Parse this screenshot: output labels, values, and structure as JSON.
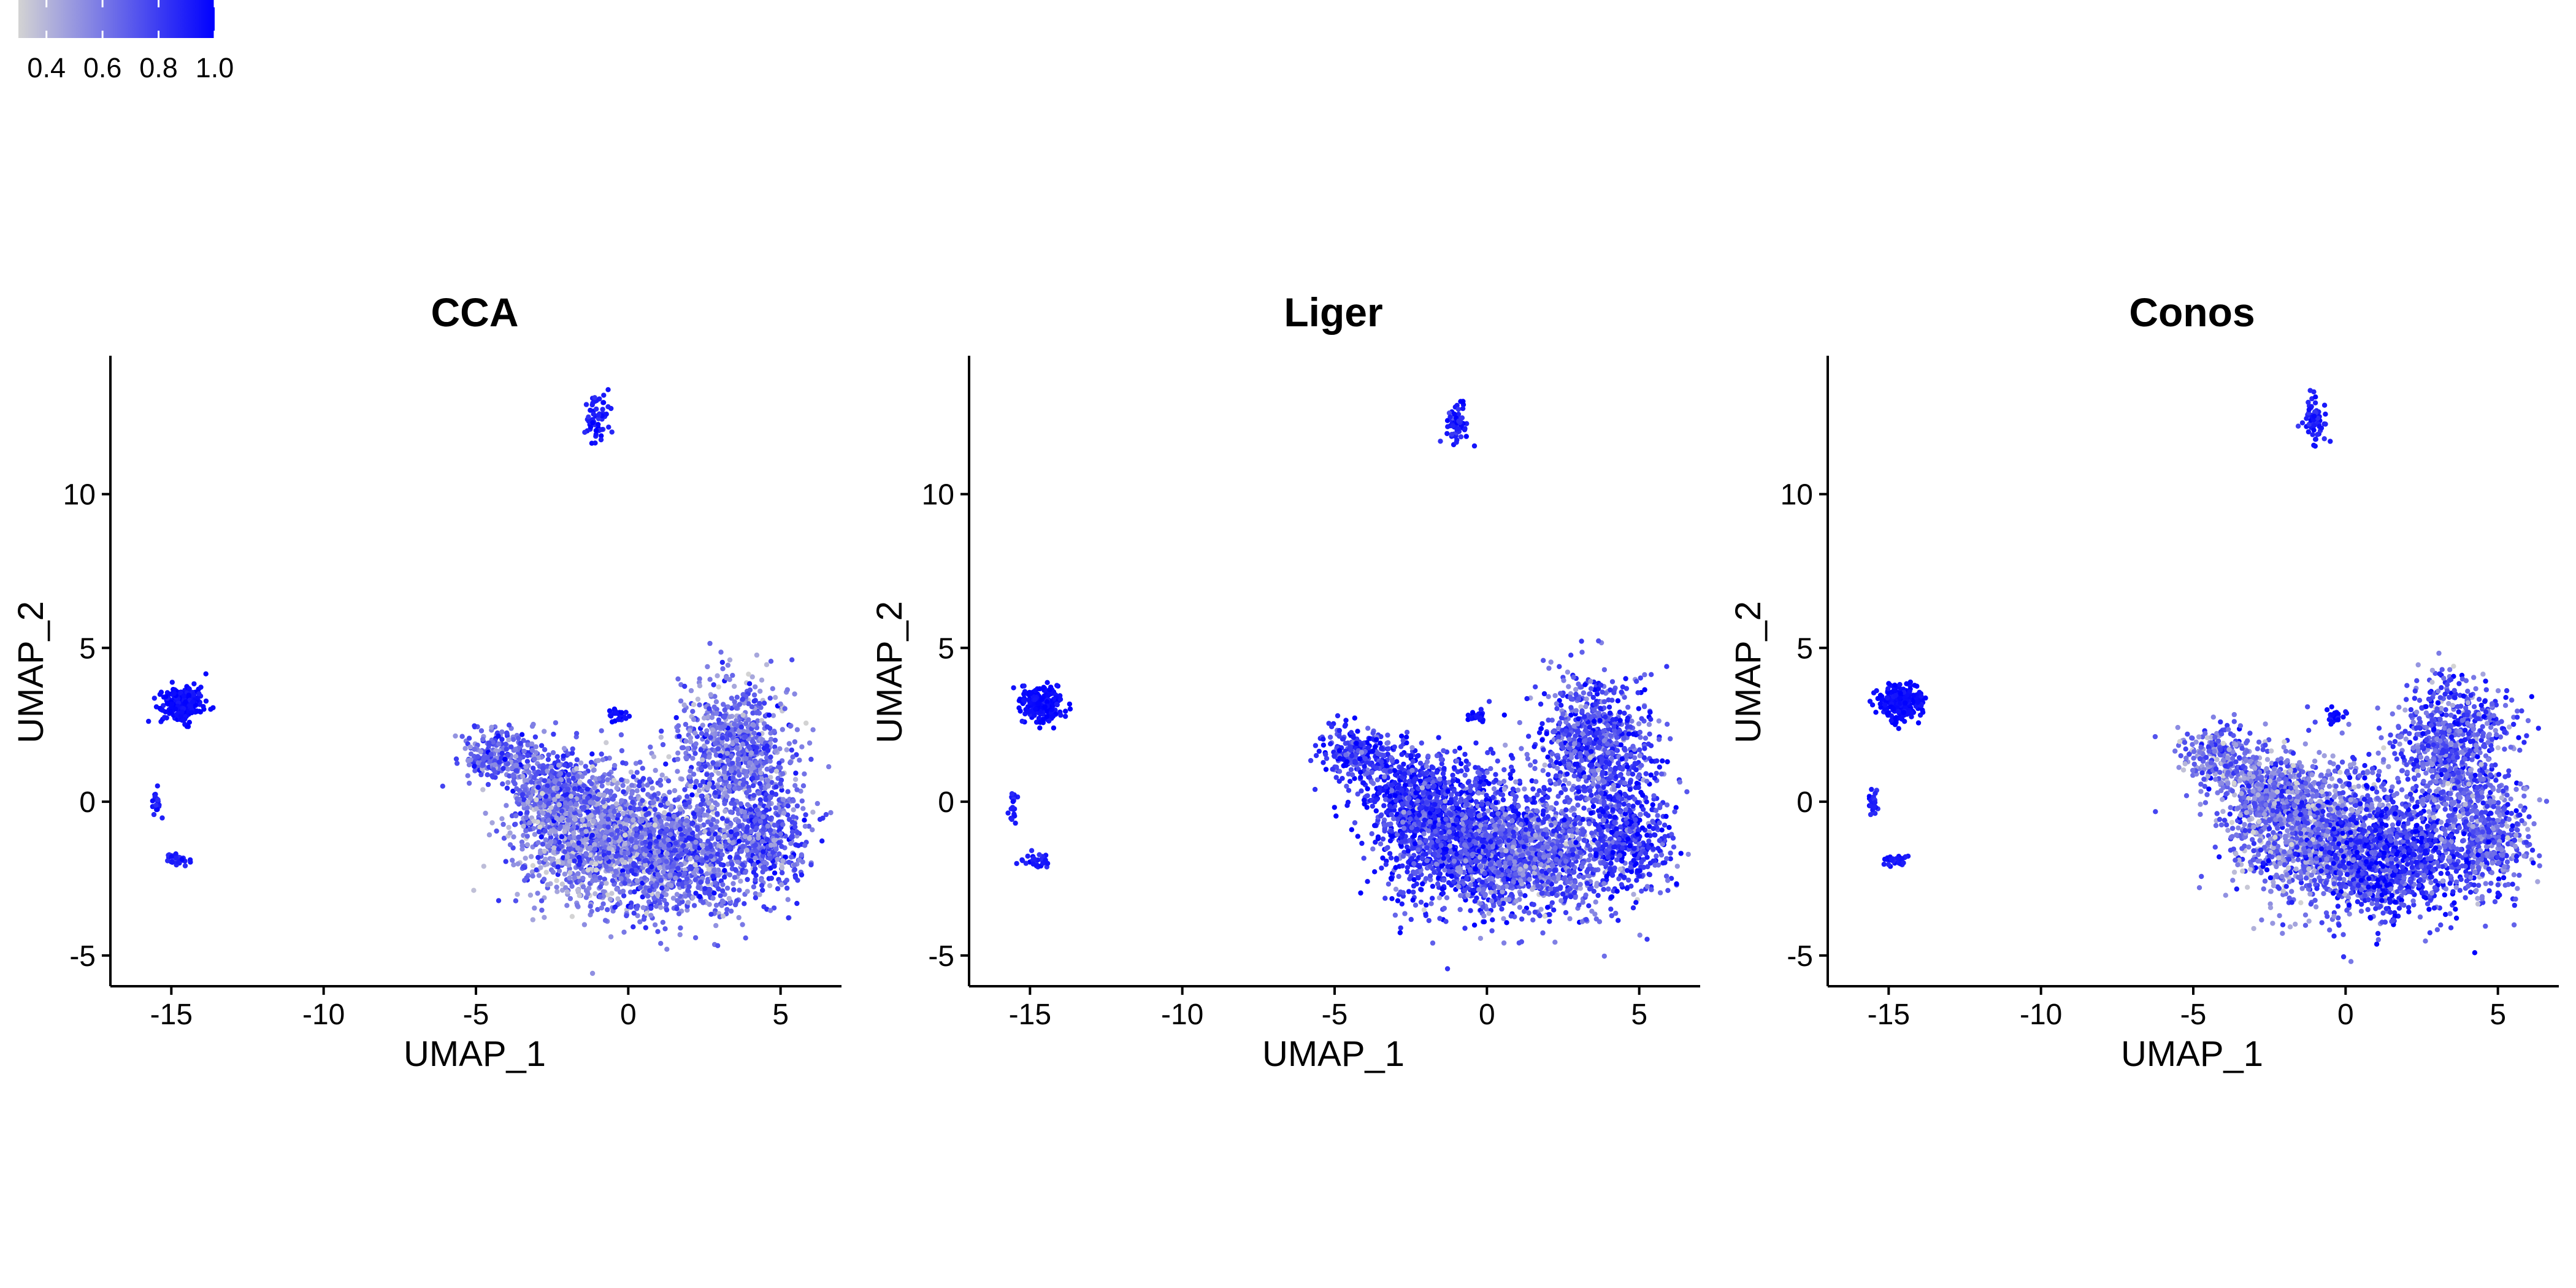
{
  "legend": {
    "colors": {
      "low": "#d3d3d3",
      "high": "#0000ff"
    },
    "range": [
      0.3,
      1.0
    ],
    "ticks": [
      "0.4",
      "0.6",
      "0.8",
      "1.0"
    ],
    "tick_values": [
      0.4,
      0.6,
      0.8,
      1.0
    ]
  },
  "chart_data": [
    {
      "type": "scatter",
      "title": "CCA",
      "xlabel": "UMAP_1",
      "ylabel": "UMAP_2",
      "xlim": [
        -17,
        7
      ],
      "ylim": [
        -6,
        14.5
      ],
      "xticks": [
        "-15",
        "-10",
        "-5",
        "0",
        "5"
      ],
      "xtick_values": [
        -15,
        -10,
        -5,
        0,
        5
      ],
      "yticks": [
        "-5",
        "0",
        "5",
        "10"
      ],
      "ytick_values": [
        -5,
        0,
        5,
        10
      ],
      "grid": false,
      "clusters": [
        {
          "cx": -14.6,
          "cy": 3.2,
          "sx": 0.35,
          "sy": 0.28,
          "n": 240,
          "mean": 0.97,
          "sd": 0.03
        },
        {
          "cx": -15.5,
          "cy": 0.0,
          "sx": 0.08,
          "sy": 0.25,
          "n": 22,
          "mean": 0.9,
          "sd": 0.05
        },
        {
          "cx": -14.8,
          "cy": -1.9,
          "sx": 0.22,
          "sy": 0.12,
          "n": 30,
          "mean": 0.92,
          "sd": 0.05
        },
        {
          "cx": -1.0,
          "cy": 12.4,
          "sx": 0.18,
          "sy": 0.45,
          "n": 60,
          "mean": 0.9,
          "sd": 0.06
        },
        {
          "cx": -0.35,
          "cy": 2.8,
          "sx": 0.16,
          "sy": 0.12,
          "n": 25,
          "mean": 0.95,
          "sd": 0.04
        },
        {
          "cx": -4.2,
          "cy": 1.5,
          "sx": 0.6,
          "sy": 0.45,
          "n": 260,
          "mean": 0.7,
          "sd": 0.13
        },
        {
          "cx": -2.4,
          "cy": 0.2,
          "sx": 0.8,
          "sy": 0.7,
          "n": 500,
          "mean": 0.66,
          "sd": 0.14
        },
        {
          "cx": -0.7,
          "cy": -1.2,
          "sx": 1.4,
          "sy": 1.1,
          "n": 1400,
          "mean": 0.58,
          "sd": 0.16
        },
        {
          "cx": 1.8,
          "cy": -1.8,
          "sx": 1.3,
          "sy": 1.0,
          "n": 900,
          "mean": 0.68,
          "sd": 0.15
        },
        {
          "cx": 3.5,
          "cy": 1.8,
          "sx": 0.95,
          "sy": 1.1,
          "n": 800,
          "mean": 0.64,
          "sd": 0.14
        },
        {
          "cx": 4.6,
          "cy": -1.2,
          "sx": 0.7,
          "sy": 0.9,
          "n": 450,
          "mean": 0.7,
          "sd": 0.14
        }
      ]
    },
    {
      "type": "scatter",
      "title": "Liger",
      "xlabel": "UMAP_1",
      "ylabel": "UMAP_2",
      "xlim": [
        -17,
        7
      ],
      "ylim": [
        -6,
        14.5
      ],
      "xticks": [
        "-15",
        "-10",
        "-5",
        "0",
        "5"
      ],
      "xtick_values": [
        -15,
        -10,
        -5,
        0,
        5
      ],
      "yticks": [
        "-5",
        "0",
        "5",
        "10"
      ],
      "ytick_values": [
        -5,
        0,
        5,
        10
      ],
      "grid": false,
      "clusters": [
        {
          "cx": -14.6,
          "cy": 3.2,
          "sx": 0.35,
          "sy": 0.28,
          "n": 240,
          "mean": 0.97,
          "sd": 0.03
        },
        {
          "cx": -15.5,
          "cy": 0.0,
          "sx": 0.08,
          "sy": 0.25,
          "n": 22,
          "mean": 0.9,
          "sd": 0.05
        },
        {
          "cx": -14.8,
          "cy": -1.9,
          "sx": 0.22,
          "sy": 0.12,
          "n": 30,
          "mean": 0.92,
          "sd": 0.05
        },
        {
          "cx": -1.0,
          "cy": 12.4,
          "sx": 0.18,
          "sy": 0.45,
          "n": 60,
          "mean": 0.9,
          "sd": 0.06
        },
        {
          "cx": -0.35,
          "cy": 2.8,
          "sx": 0.16,
          "sy": 0.12,
          "n": 25,
          "mean": 0.95,
          "sd": 0.04
        },
        {
          "cx": -4.2,
          "cy": 1.5,
          "sx": 0.6,
          "sy": 0.45,
          "n": 260,
          "mean": 0.82,
          "sd": 0.12
        },
        {
          "cx": -2.4,
          "cy": 0.2,
          "sx": 0.8,
          "sy": 0.7,
          "n": 500,
          "mean": 0.85,
          "sd": 0.12
        },
        {
          "cx": -0.7,
          "cy": -1.2,
          "sx": 1.4,
          "sy": 1.1,
          "n": 1400,
          "mean": 0.82,
          "sd": 0.14
        },
        {
          "cx": 1.8,
          "cy": -1.8,
          "sx": 1.3,
          "sy": 1.0,
          "n": 900,
          "mean": 0.68,
          "sd": 0.15
        },
        {
          "cx": 3.5,
          "cy": 1.8,
          "sx": 0.95,
          "sy": 1.1,
          "n": 800,
          "mean": 0.76,
          "sd": 0.15
        },
        {
          "cx": 4.6,
          "cy": -1.2,
          "sx": 0.7,
          "sy": 0.9,
          "n": 450,
          "mean": 0.82,
          "sd": 0.13
        }
      ]
    },
    {
      "type": "scatter",
      "title": "Conos",
      "xlabel": "UMAP_1",
      "ylabel": "UMAP_2",
      "xlim": [
        -17,
        7
      ],
      "ylim": [
        -6,
        14.5
      ],
      "xticks": [
        "-15",
        "-10",
        "-5",
        "0",
        "5"
      ],
      "xtick_values": [
        -15,
        -10,
        -5,
        0,
        5
      ],
      "yticks": [
        "-5",
        "0",
        "5",
        "10"
      ],
      "ytick_values": [
        -5,
        0,
        5,
        10
      ],
      "grid": false,
      "clusters": [
        {
          "cx": -14.6,
          "cy": 3.2,
          "sx": 0.35,
          "sy": 0.28,
          "n": 240,
          "mean": 0.97,
          "sd": 0.03
        },
        {
          "cx": -15.5,
          "cy": 0.0,
          "sx": 0.08,
          "sy": 0.25,
          "n": 22,
          "mean": 0.9,
          "sd": 0.05
        },
        {
          "cx": -14.8,
          "cy": -1.9,
          "sx": 0.22,
          "sy": 0.12,
          "n": 30,
          "mean": 0.92,
          "sd": 0.05
        },
        {
          "cx": -1.0,
          "cy": 12.4,
          "sx": 0.18,
          "sy": 0.45,
          "n": 60,
          "mean": 0.9,
          "sd": 0.06
        },
        {
          "cx": -0.35,
          "cy": 2.8,
          "sx": 0.16,
          "sy": 0.12,
          "n": 25,
          "mean": 0.95,
          "sd": 0.04
        },
        {
          "cx": -4.2,
          "cy": 1.5,
          "sx": 0.6,
          "sy": 0.45,
          "n": 260,
          "mean": 0.62,
          "sd": 0.15
        },
        {
          "cx": -2.4,
          "cy": 0.2,
          "sx": 0.8,
          "sy": 0.7,
          "n": 500,
          "mean": 0.66,
          "sd": 0.15
        },
        {
          "cx": -0.7,
          "cy": -1.2,
          "sx": 1.4,
          "sy": 1.1,
          "n": 1400,
          "mean": 0.62,
          "sd": 0.16
        },
        {
          "cx": 1.8,
          "cy": -1.8,
          "sx": 1.3,
          "sy": 1.0,
          "n": 900,
          "mean": 0.84,
          "sd": 0.13
        },
        {
          "cx": 3.5,
          "cy": 1.8,
          "sx": 0.95,
          "sy": 1.1,
          "n": 800,
          "mean": 0.72,
          "sd": 0.15
        },
        {
          "cx": 4.6,
          "cy": -1.2,
          "sx": 0.7,
          "sy": 0.9,
          "n": 450,
          "mean": 0.7,
          "sd": 0.15
        }
      ]
    }
  ]
}
